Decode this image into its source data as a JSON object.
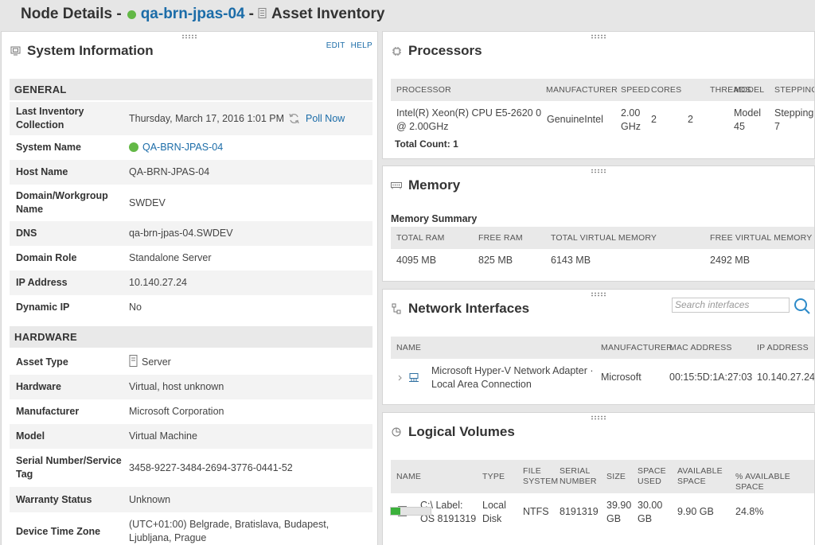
{
  "header": {
    "prefix": "Node Details -",
    "node_name": "qa-brn-jpas-04",
    "separator": "-",
    "page_name": "Asset Inventory"
  },
  "system_info": {
    "title": "System Information",
    "edit_label": "EDIT",
    "help_label": "HELP",
    "general_header": "GENERAL",
    "hardware_header": "HARDWARE",
    "last_inventory_label": "Last Inventory Collection",
    "last_inventory_value": "Thursday, March 17, 2016 1:01 PM",
    "poll_now": "Poll Now",
    "system_name_label": "System Name",
    "system_name_value": "QA-BRN-JPAS-04",
    "host_name_label": "Host Name",
    "host_name_value": "QA-BRN-JPAS-04",
    "domain_label": "Domain/Workgroup Name",
    "domain_value": "SWDEV",
    "dns_label": "DNS",
    "dns_value": "qa-brn-jpas-04.SWDEV",
    "domain_role_label": "Domain Role",
    "domain_role_value": "Standalone Server",
    "ip_label": "IP Address",
    "ip_value": "10.140.27.24",
    "dynamic_ip_label": "Dynamic IP",
    "dynamic_ip_value": "No",
    "asset_type_label": "Asset Type",
    "asset_type_value": "Server",
    "hardware_label": "Hardware",
    "hardware_value": "Virtual, host unknown",
    "manufacturer_label": "Manufacturer",
    "manufacturer_value": "Microsoft Corporation",
    "model_label": "Model",
    "model_value": "Virtual Machine",
    "serial_label": "Serial Number/Service Tag",
    "serial_value": "3458-9227-3484-2694-3776-0441-52",
    "warranty_label": "Warranty Status",
    "warranty_value": "Unknown",
    "timezone_label": "Device Time Zone",
    "timezone_value": "(UTC+01:00) Belgrade, Bratislava, Budapest, Ljubljana, Prague"
  },
  "processors": {
    "title": "Processors",
    "columns": [
      "PROCESSOR",
      "MANUFACTURER",
      "SPEED",
      "CORES",
      "THREADS",
      "MODEL",
      "STEPPING"
    ],
    "row": {
      "processor": "Intel(R) Xeon(R) CPU E5-2620 0 @ 2.00GHz",
      "manufacturer": "GenuineIntel",
      "speed": "2.00 GHz",
      "cores": "2",
      "threads": "2",
      "model": "Model 45",
      "stepping": "Stepping 7"
    },
    "total": "Total Count: 1"
  },
  "memory": {
    "title": "Memory",
    "summary_title": "Memory Summary",
    "columns": [
      "TOTAL RAM",
      "FREE RAM",
      "TOTAL VIRTUAL MEMORY",
      "FREE VIRTUAL MEMORY"
    ],
    "values": [
      "4095 MB",
      "825 MB",
      "6143 MB",
      "2492 MB"
    ]
  },
  "network": {
    "title": "Network Interfaces",
    "search_placeholder": "Search interfaces",
    "columns": [
      "NAME",
      "MANUFACTURER",
      "MAC ADDRESS",
      "IP ADDRESS"
    ],
    "row": {
      "name": "Microsoft Hyper-V Network Adapter · Local Area Connection",
      "manufacturer": "Microsoft",
      "mac": "00:15:5D:1A:27:03",
      "ip": "10.140.27.24"
    }
  },
  "volumes": {
    "title": "Logical Volumes",
    "columns": {
      "name": "NAME",
      "type": "TYPE",
      "fs": "FILE SYSTEM",
      "serial": "SERIAL NUMBER",
      "size": "SIZE",
      "used": "SPACE USED",
      "available": "AVAILABLE SPACE",
      "pct": "% AVAILABLE SPACE"
    },
    "row": {
      "name": "C:\\ Label: OS 8191319",
      "type": "Local Disk",
      "fs": "NTFS",
      "serial": "8191319",
      "size": "39.90 GB",
      "used": "30.00 GB",
      "available": "9.90 GB",
      "pct": "24.8%",
      "pct_fraction": 0.248
    }
  },
  "colors": {
    "link": "#1b6ca8",
    "status_up": "#63b846",
    "bar_fill": "#3cb13c"
  }
}
